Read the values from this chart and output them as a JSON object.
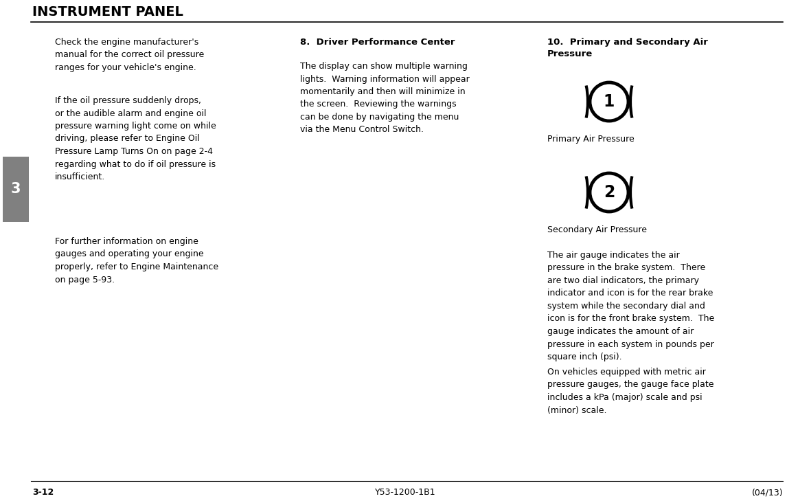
{
  "title": "INSTRUMENT PANEL",
  "bg_color": "#ffffff",
  "title_color": "#000000",
  "sidebar_color": "#808080",
  "sidebar_number": "3",
  "footer_left": "3-12",
  "footer_center": "Y53-1200-1B1",
  "footer_right": "(04/13)",
  "col1_text_para1": "Check the engine manufacturer's\nmanual for the correct oil pressure\nranges for your vehicle's engine.",
  "col1_text_para2": "If the oil pressure suddenly drops,\nor the audible alarm and engine oil\npressure warning light come on while\ndriving, please refer to Engine Oil\nPressure Lamp Turns On on page 2-4\nregarding what to do if oil pressure is\ninsufficient.",
  "col1_text_para3": "For further information on engine\ngauges and operating your engine\nproperly, refer to Engine Maintenance\non page 5-93.",
  "col2_heading": "8.  Driver Performance Center",
  "col2_text": "The display can show multiple warning\nlights.  Warning information will appear\nmomentarily and then will minimize in\nthe screen.  Reviewing the warnings\ncan be done by navigating the menu\nvia the Menu Control Switch.",
  "col3_heading": "10.  Primary and Secondary Air\nPressure",
  "col3_label1": "Primary Air Pressure",
  "col3_label2": "Secondary Air Pressure",
  "col3_text": "The air gauge indicates the air\npressure in the brake system.  There\nare two dial indicators, the primary\nindicator and icon is for the rear brake\nsystem while the secondary dial and\nicon is for the front brake system.  The\ngauge indicates the amount of air\npressure in each system in pounds per\nsquare inch (psi).",
  "col3_text2": "On vehicles equipped with metric air\npressure gauges, the gauge face plate\nincludes a kPa (major) scale and psi\n(minor) scale.",
  "icon1_number": "1",
  "icon2_number": "2"
}
